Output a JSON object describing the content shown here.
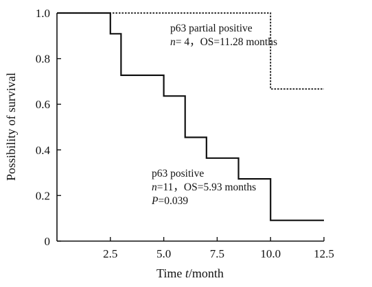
{
  "chart_data": {
    "type": "line",
    "subtype": "kaplan-meier step",
    "title": "",
    "xlabel_prefix": "Time ",
    "xlabel_var": "t",
    "xlabel_suffix": "/month",
    "ylabel": "Possibility of survival",
    "xlim": [
      0,
      12.5
    ],
    "ylim": [
      0,
      1.0
    ],
    "x_ticks": [
      2.5,
      5.0,
      7.5,
      10.0,
      12.5
    ],
    "x_tick_labels": [
      "2.5",
      "5.0",
      "7.5",
      "10.0",
      "12.5"
    ],
    "y_ticks": [
      0,
      0.2,
      0.4,
      0.6,
      0.8,
      1.0
    ],
    "y_tick_labels": [
      "0",
      "0.2",
      "0.4",
      "0.6",
      "0.8",
      "1.0"
    ],
    "grid": false,
    "series": [
      {
        "name": "p63 positive",
        "style": "solid",
        "color": "#111111",
        "steps": [
          {
            "x": 0,
            "y": 1.0
          },
          {
            "x": 2.5,
            "y": 0.909
          },
          {
            "x": 3.0,
            "y": 0.727
          },
          {
            "x": 5.0,
            "y": 0.636
          },
          {
            "x": 6.0,
            "y": 0.455
          },
          {
            "x": 7.0,
            "y": 0.364
          },
          {
            "x": 8.5,
            "y": 0.273
          },
          {
            "x": 10.0,
            "y": 0.091
          }
        ],
        "x_end": 12.5
      },
      {
        "name": "p63 partial positive",
        "style": "dotted",
        "color": "#111111",
        "steps": [
          {
            "x": 0,
            "y": 1.0
          },
          {
            "x": 10.0,
            "y": 0.667
          }
        ],
        "x_end": 12.5
      }
    ],
    "annotations": {
      "partial": {
        "name": "p63 partial positive",
        "n_var": "n",
        "n_text": "= 4，OS=11.28 months"
      },
      "positive": {
        "name": "p63 positive",
        "n_var": "n",
        "n_text": "=11，OS=5.93 months",
        "p_var": "P",
        "p_text": "=0.039"
      }
    }
  }
}
